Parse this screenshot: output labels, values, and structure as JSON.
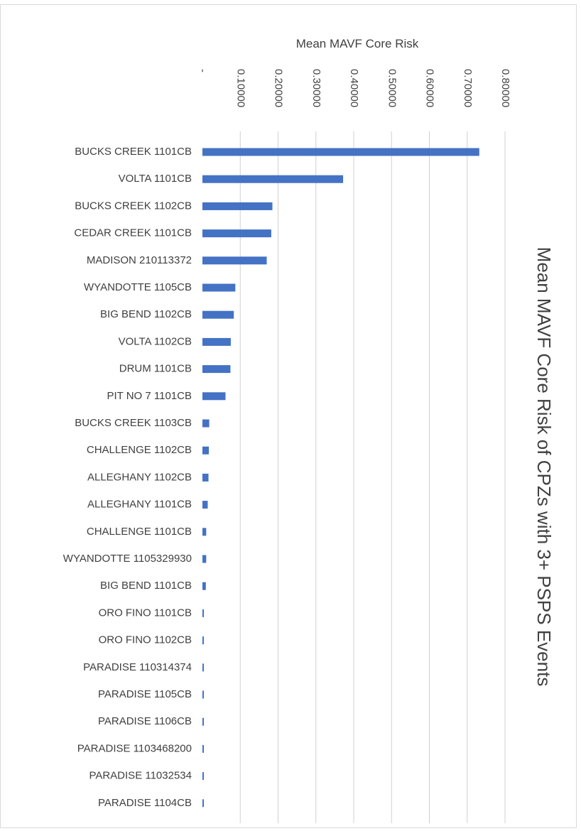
{
  "chart_data": {
    "type": "bar",
    "orientation": "horizontal",
    "title": "Mean MAVF Core Risk of CPZs with 3+ PSPS Events",
    "xlabel": "Mean MAVF Core Risk",
    "ylabel": "",
    "xlim": [
      0,
      0.8
    ],
    "ticks": [
      0,
      0.1,
      0.2,
      0.3,
      0.4,
      0.5,
      0.6,
      0.7,
      0.8
    ],
    "tick_labels": [
      "-",
      "0.10000",
      "0.20000",
      "0.30000",
      "0.40000",
      "0.50000",
      "0.60000",
      "0.70000",
      "0.80000"
    ],
    "axis_position": "top",
    "grid": true,
    "bar_color": "#4472c4",
    "categories": [
      "BUCKS CREEK 1101CB",
      "VOLTA 1101CB",
      "BUCKS CREEK 1102CB",
      "CEDAR CREEK 1101CB",
      "MADISON 210113372",
      "WYANDOTTE 1105CB",
      "BIG BEND 1102CB",
      "VOLTA 1102CB",
      "DRUM 1101CB",
      "PIT NO 7 1101CB",
      "BUCKS CREEK 1103CB",
      "CHALLENGE 1102CB",
      "ALLEGHANY 1102CB",
      "ALLEGHANY 1101CB",
      "CHALLENGE 1101CB",
      "WYANDOTTE 1105329930",
      "BIG BEND 1101CB",
      "ORO FINO 1101CB",
      "ORO FINO 1102CB",
      "PARADISE 110314374",
      "PARADISE 1105CB",
      "PARADISE 1106CB",
      "PARADISE 1103468200",
      "PARADISE 11032534",
      "PARADISE 1104CB"
    ],
    "values": [
      0.732,
      0.372,
      0.185,
      0.182,
      0.17,
      0.087,
      0.083,
      0.075,
      0.074,
      0.061,
      0.018,
      0.017,
      0.016,
      0.014,
      0.01,
      0.01,
      0.009,
      0.003,
      0.003,
      0.003,
      0.003,
      0.003,
      0.003,
      0.003,
      0.003
    ]
  }
}
